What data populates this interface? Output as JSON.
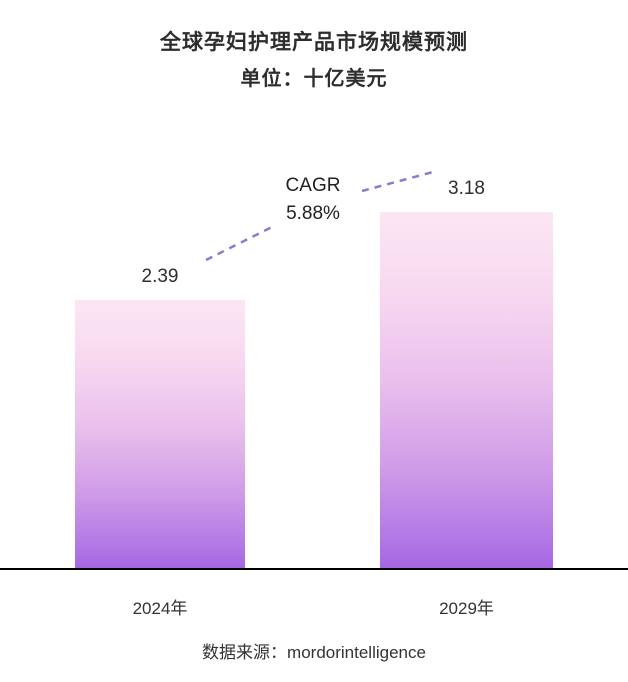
{
  "chart_data": {
    "type": "bar",
    "title": "全球孕妇护理产品市场规模预测",
    "subtitle": "单位：十亿美元",
    "categories": [
      "2024年",
      "2029年"
    ],
    "values": [
      2.39,
      3.18
    ],
    "annotation": {
      "label": "CAGR",
      "value": "5.88%"
    },
    "source": "数据来源：mordorintelligence",
    "xlabel": "",
    "ylabel": "",
    "ylim": [
      0,
      3.5
    ],
    "grid": false,
    "legend": "none",
    "colors": {
      "bar_gradient_top": "#fce6f3",
      "bar_gradient_bottom": "#a765e3",
      "connector_dash": "#8a7ad2",
      "axis": "#000000",
      "text": "#2d2d2d"
    }
  }
}
